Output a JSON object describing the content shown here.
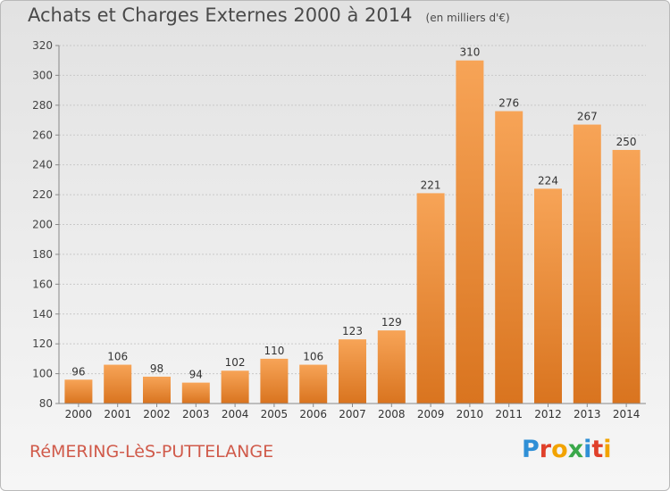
{
  "header": {
    "title": "Achats et Charges Externes 2000 à 2014",
    "unit": "(en milliers d'€)"
  },
  "footer": {
    "town": "RéMERING-LèS-PUTTELANGE",
    "logo_letters": [
      "P",
      "r",
      "o",
      "x",
      "i",
      "t",
      "i"
    ],
    "logo_colors": [
      "#2f8fd6",
      "#e0402a",
      "#f2a300",
      "#3aa84a",
      "#2f8fd6",
      "#e0402a",
      "#f2a300"
    ]
  },
  "chart_data": {
    "type": "bar",
    "title": "Achats et Charges Externes 2000 à 2014",
    "subtitle": "(en milliers d'€)",
    "categories": [
      "2000",
      "2001",
      "2002",
      "2003",
      "2004",
      "2005",
      "2006",
      "2007",
      "2008",
      "2009",
      "2010",
      "2011",
      "2012",
      "2013",
      "2014"
    ],
    "values": [
      96,
      106,
      98,
      94,
      102,
      110,
      106,
      123,
      129,
      221,
      310,
      276,
      224,
      267,
      250
    ],
    "data_labels": [
      "96",
      "106",
      "98",
      "94",
      "102",
      "110",
      "106",
      "123",
      "129",
      "221",
      "310",
      "276",
      "224",
      "267",
      "250"
    ],
    "ylim": [
      80,
      320
    ],
    "yticks": [
      80,
      100,
      120,
      140,
      160,
      180,
      200,
      220,
      240,
      260,
      280,
      300,
      320
    ],
    "grid": true,
    "bar_color": "#f0923a",
    "xlabel": "",
    "ylabel": ""
  }
}
